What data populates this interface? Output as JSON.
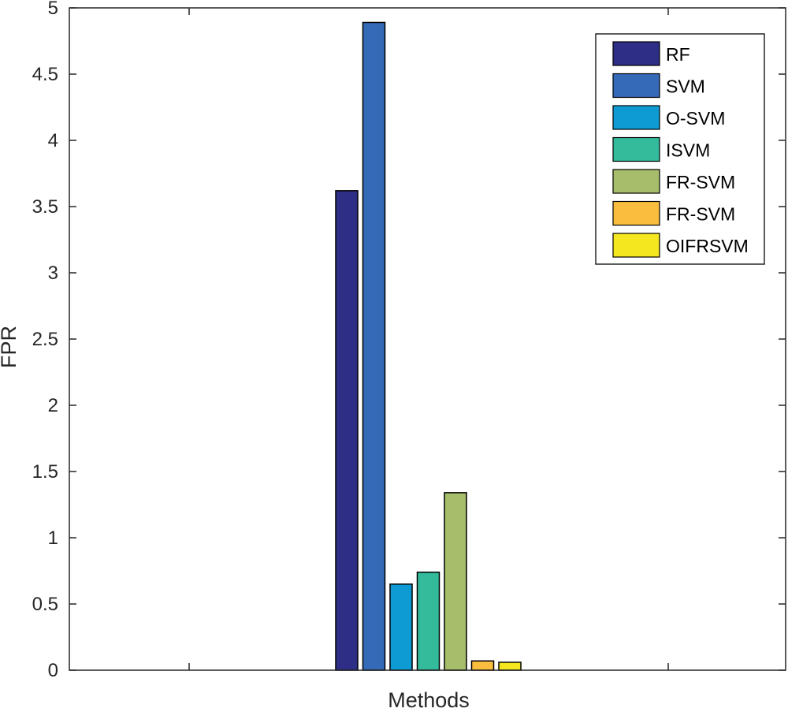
{
  "chart_data": {
    "type": "bar",
    "title": "",
    "xlabel": "Methods",
    "ylabel": "FPR",
    "ylim": [
      0,
      5
    ],
    "yticks": [
      "0",
      "0.5",
      "1",
      "1.5",
      "2",
      "2.5",
      "3",
      "3.5",
      "4",
      "4.5",
      "5"
    ],
    "categories": [
      ""
    ],
    "grid": false,
    "legend_position": "top-right",
    "series": [
      {
        "name": "RF",
        "values": [
          3.62
        ],
        "color": "#2f2e87"
      },
      {
        "name": "SVM",
        "values": [
          4.89
        ],
        "color": "#356ab9"
      },
      {
        "name": "O-SVM",
        "values": [
          0.65
        ],
        "color": "#0e9bd3"
      },
      {
        "name": "ISVM",
        "values": [
          0.74
        ],
        "color": "#33bb9c"
      },
      {
        "name": "FR-SVM",
        "values": [
          1.34
        ],
        "color": "#a6be6c"
      },
      {
        "name": "FR-SVM",
        "values": [
          0.07
        ],
        "color": "#fbbd3d"
      },
      {
        "name": "OIFRSVM",
        "values": [
          0.06
        ],
        "color": "#f4e61f"
      }
    ]
  }
}
